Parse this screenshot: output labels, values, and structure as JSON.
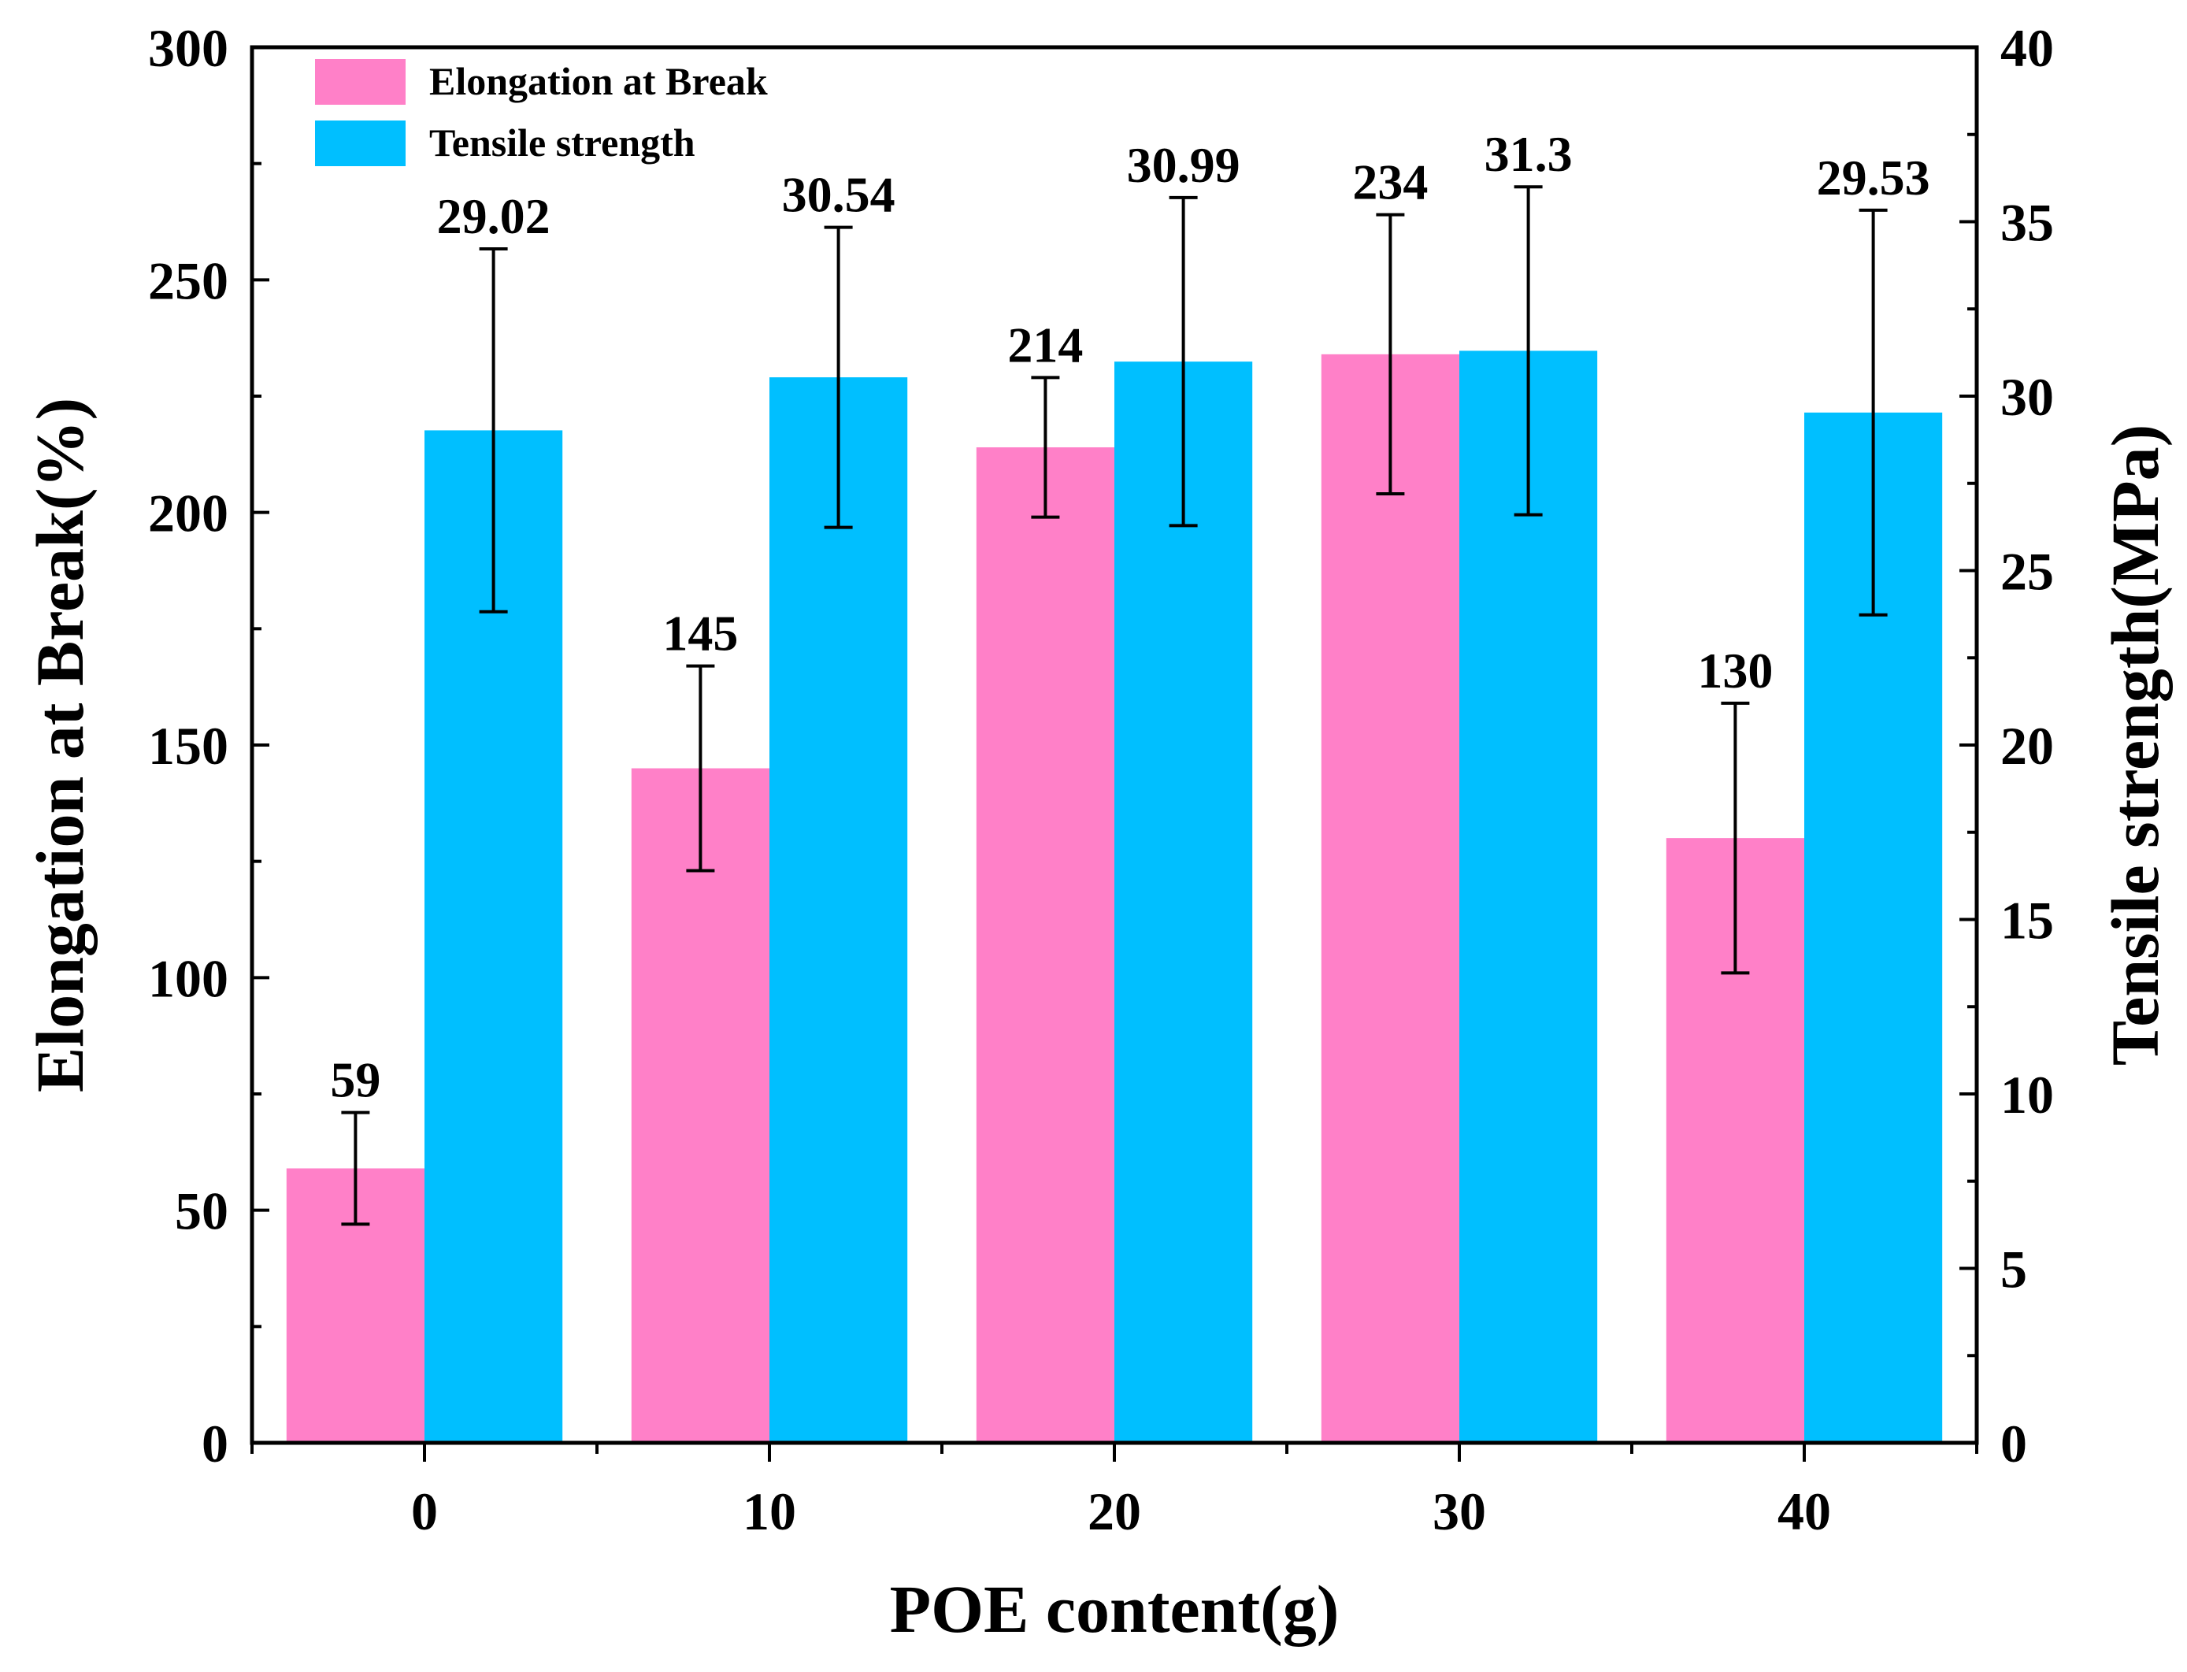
{
  "chart_data": {
    "type": "bar",
    "xlabel": "POE content(g)",
    "ylabel": "Elongation at Break(%)",
    "y2label": "Tensile strength(MPa)",
    "categories": [
      "0",
      "10",
      "20",
      "30",
      "40"
    ],
    "x_values": [
      0,
      10,
      20,
      30,
      40
    ],
    "xlim": [
      -5,
      45
    ],
    "ylim": [
      0,
      300
    ],
    "y2lim": [
      0,
      40
    ],
    "yticks": [
      "0",
      "50",
      "100",
      "150",
      "200",
      "250",
      "300"
    ],
    "y2ticks": [
      "0",
      "5",
      "10",
      "15",
      "20",
      "25",
      "30",
      "35",
      "40"
    ],
    "legend_position": "top-left",
    "series": [
      {
        "name": "Elongation at Break",
        "axis": "left",
        "color": "#FF80C8",
        "values": [
          59,
          145,
          214,
          234,
          130
        ],
        "errors": [
          12,
          22,
          15,
          30,
          29
        ],
        "labels": [
          "59",
          "145",
          "214",
          "234",
          "130"
        ]
      },
      {
        "name": "Tensile strength",
        "axis": "right",
        "color": "#00BFFF",
        "values": [
          29.02,
          30.54,
          30.99,
          31.3,
          29.53
        ],
        "errors": [
          5.2,
          4.3,
          4.7,
          4.7,
          5.8
        ],
        "labels": [
          "29.02",
          "30.54",
          "30.99",
          "31.3",
          "29.53"
        ]
      }
    ]
  }
}
